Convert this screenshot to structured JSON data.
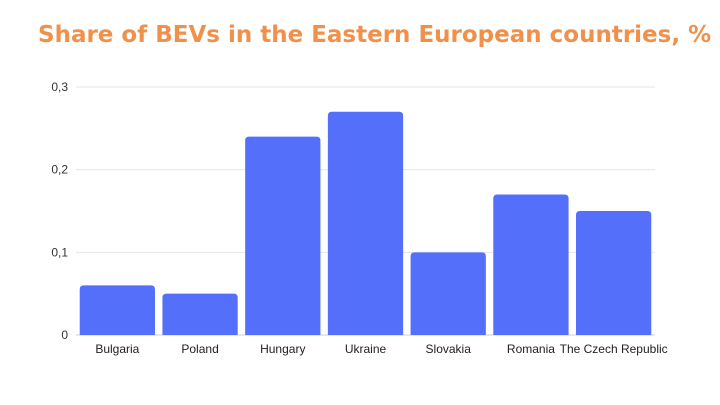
{
  "chart_data": {
    "type": "bar",
    "title": "Share of BEVs in the Eastern European countries, %",
    "xlabel": "",
    "ylabel": "",
    "categories": [
      "Bulgaria",
      "Poland",
      "Hungary",
      "Ukraine",
      "Slovakia",
      "Romania",
      "The Czech Republic"
    ],
    "values": [
      0.06,
      0.05,
      0.24,
      0.27,
      0.1,
      0.17,
      0.15
    ],
    "ylim": [
      0,
      0.3
    ],
    "yticks": [
      0,
      0.1,
      0.2,
      0.3
    ],
    "ytick_labels": [
      "0",
      "0,1",
      "0,2",
      "0,3"
    ],
    "grid": true,
    "colors": {
      "bar": "#5470fb",
      "title": "#f0904a",
      "grid": "#e6e6e6"
    }
  }
}
